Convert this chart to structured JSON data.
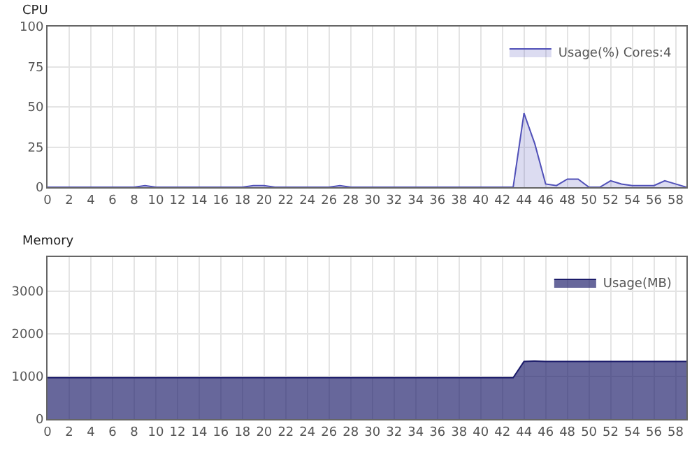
{
  "chart_data": [
    {
      "type": "area",
      "title": "CPU",
      "x": [
        0,
        1,
        2,
        3,
        4,
        5,
        6,
        7,
        8,
        9,
        10,
        11,
        12,
        13,
        14,
        15,
        16,
        17,
        18,
        19,
        20,
        21,
        22,
        23,
        24,
        25,
        26,
        27,
        28,
        29,
        30,
        31,
        32,
        33,
        34,
        35,
        36,
        37,
        38,
        39,
        40,
        41,
        42,
        43,
        44,
        45,
        46,
        47,
        48,
        49,
        50,
        51,
        52,
        53,
        54,
        55,
        56,
        57,
        58,
        59
      ],
      "series": [
        {
          "name": "Usage(%) Cores:4",
          "color": "#5050b8",
          "values": [
            0,
            0,
            0,
            0,
            0,
            0,
            0,
            0,
            0,
            1,
            0,
            0,
            0,
            0,
            0,
            0,
            0,
            0,
            0,
            1,
            1,
            0,
            0,
            0,
            0,
            0,
            0,
            1,
            0,
            0,
            0,
            0,
            0,
            0,
            0,
            0,
            0,
            0,
            0,
            0,
            0,
            0,
            0,
            0,
            46,
            27,
            2,
            1,
            5,
            5,
            0,
            0,
            4,
            2,
            1,
            1,
            1,
            4,
            2,
            0
          ]
        }
      ],
      "xlim": [
        0,
        59
      ],
      "xticks": [
        0,
        2,
        4,
        6,
        8,
        10,
        12,
        14,
        16,
        18,
        20,
        22,
        24,
        26,
        28,
        30,
        32,
        34,
        36,
        38,
        40,
        42,
        44,
        46,
        48,
        50,
        52,
        54,
        56,
        58
      ],
      "ylim": [
        0,
        100
      ],
      "yticks": [
        0,
        25,
        50,
        75,
        100
      ],
      "grid": true,
      "legend": "top right"
    },
    {
      "type": "area",
      "title": "Memory",
      "x": [
        0,
        1,
        2,
        3,
        4,
        5,
        6,
        7,
        8,
        9,
        10,
        11,
        12,
        13,
        14,
        15,
        16,
        17,
        18,
        19,
        20,
        21,
        22,
        23,
        24,
        25,
        26,
        27,
        28,
        29,
        30,
        31,
        32,
        33,
        34,
        35,
        36,
        37,
        38,
        39,
        40,
        41,
        42,
        43,
        44,
        45,
        46,
        47,
        48,
        49,
        50,
        51,
        52,
        53,
        54,
        55,
        56,
        57,
        58,
        59
      ],
      "series": [
        {
          "name": "Usage(MB)",
          "color": "#1c1c6a",
          "values": [
            970,
            970,
            970,
            970,
            970,
            970,
            970,
            970,
            970,
            970,
            970,
            970,
            970,
            970,
            970,
            970,
            970,
            970,
            970,
            970,
            970,
            970,
            970,
            970,
            970,
            970,
            970,
            970,
            970,
            970,
            970,
            970,
            970,
            970,
            970,
            970,
            970,
            970,
            970,
            970,
            970,
            970,
            970,
            970,
            1350,
            1360,
            1350,
            1350,
            1350,
            1350,
            1350,
            1350,
            1350,
            1350,
            1350,
            1350,
            1350,
            1350,
            1350,
            1350
          ]
        }
      ],
      "xlim": [
        0,
        59
      ],
      "xticks": [
        0,
        2,
        4,
        6,
        8,
        10,
        12,
        14,
        16,
        18,
        20,
        22,
        24,
        26,
        28,
        30,
        32,
        34,
        36,
        38,
        40,
        42,
        44,
        46,
        48,
        50,
        52,
        54,
        56,
        58
      ],
      "ylim": [
        0,
        3800
      ],
      "yticks": [
        0,
        1000,
        2000,
        3000
      ],
      "grid": true,
      "legend": "top right"
    }
  ]
}
